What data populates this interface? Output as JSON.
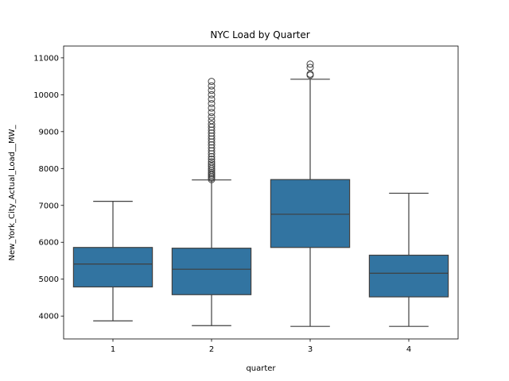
{
  "chart_data": {
    "type": "box",
    "title": "NYC Load by Quarter",
    "xlabel": "quarter",
    "ylabel": "New_York_City_Actual_Load__MW_",
    "categories": [
      "1",
      "2",
      "3",
      "4"
    ],
    "ylim": [
      3380,
      11320
    ],
    "yticks": [
      4000,
      5000,
      6000,
      7000,
      8000,
      9000,
      10000,
      11000
    ],
    "box_color": "#3274a1",
    "line_color": "#3f3f3f",
    "grid": false,
    "legend": "none",
    "boxes": [
      {
        "category": "1",
        "whisker_low": 3870,
        "q1": 4790,
        "median": 5410,
        "q3": 5860,
        "whisker_high": 7110,
        "outliers": []
      },
      {
        "category": "2",
        "whisker_low": 3740,
        "q1": 4580,
        "median": 5270,
        "q3": 5840,
        "whisker_high": 7690,
        "outliers": [
          7700,
          7740,
          7780,
          7820,
          7860,
          7900,
          7950,
          8000,
          8060,
          8120,
          8180,
          8250,
          8320,
          8400,
          8480,
          8560,
          8640,
          8720,
          8800,
          8880,
          8960,
          9040,
          9120,
          9200,
          9300,
          9400,
          9520,
          9640,
          9760,
          9880,
          10000,
          10120,
          10240,
          10360
        ]
      },
      {
        "category": "3",
        "whisker_low": 3720,
        "q1": 5860,
        "median": 6760,
        "q3": 7700,
        "whisker_high": 10420,
        "outliers": [
          10530,
          10560,
          10740,
          10830
        ]
      },
      {
        "category": "4",
        "whisker_low": 3720,
        "q1": 4520,
        "median": 5160,
        "q3": 5650,
        "whisker_high": 7330,
        "outliers": []
      }
    ]
  }
}
